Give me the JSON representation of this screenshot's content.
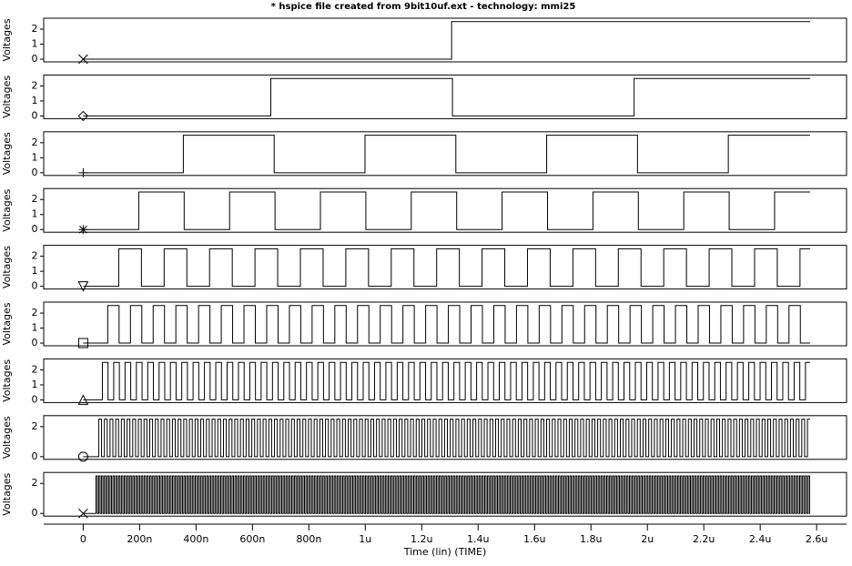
{
  "chart_data": [
    {
      "type": "line",
      "title": "* hspice file created from 9bit10uf.ext - technology: mmi25",
      "ylabel": "Voltages",
      "ylim": [
        -0.18,
        2.73
      ],
      "yticks": [
        0,
        1,
        2
      ],
      "waveform": {
        "start": 0,
        "delay": 1306,
        "half_period": 1300,
        "low": 0,
        "high": 2.5,
        "end": 2577
      }
    },
    {
      "type": "line",
      "ylabel": "Voltages",
      "ylim": [
        -0.18,
        2.73
      ],
      "yticks": [
        0,
        1,
        2
      ],
      "waveform": {
        "start": 0,
        "delay": 665,
        "half_period": 644,
        "low": 0,
        "high": 2.5,
        "end": 2577
      }
    },
    {
      "type": "line",
      "ylabel": "Voltages",
      "ylim": [
        -0.18,
        2.73
      ],
      "yticks": [
        0,
        1,
        2
      ],
      "waveform": {
        "start": 0,
        "delay": 355,
        "half_period": 322,
        "low": 0,
        "high": 2.5,
        "end": 2577
      }
    },
    {
      "type": "line",
      "ylabel": "Voltages",
      "ylim": [
        -0.18,
        2.73
      ],
      "yticks": [
        0,
        1,
        2
      ],
      "waveform": {
        "start": 0,
        "delay": 197,
        "half_period": 161,
        "low": 0,
        "high": 2.5,
        "end": 2577
      }
    },
    {
      "type": "line",
      "ylabel": "Voltages",
      "ylim": [
        -0.18,
        2.73
      ],
      "yticks": [
        0,
        1,
        2
      ],
      "waveform": {
        "start": 0,
        "delay": 126,
        "half_period": 80.5,
        "low": 0,
        "high": 2.5,
        "end": 2577
      }
    },
    {
      "type": "line",
      "ylabel": "Voltages",
      "ylim": [
        -0.18,
        2.73
      ],
      "yticks": [
        0,
        1,
        2
      ],
      "waveform": {
        "start": 0,
        "delay": 87,
        "half_period": 40.25,
        "low": 0,
        "high": 2.5,
        "end": 2577
      }
    },
    {
      "type": "line",
      "ylabel": "Voltages",
      "ylim": [
        -0.18,
        2.73
      ],
      "yticks": [
        0,
        1,
        2
      ],
      "waveform": {
        "start": 0,
        "delay": 68,
        "half_period": 20.1,
        "low": 0,
        "high": 2.5,
        "end": 2577
      }
    },
    {
      "type": "line",
      "ylabel": "Voltages",
      "ylim": [
        -0.18,
        2.73
      ],
      "yticks": [
        0,
        2
      ],
      "waveform": {
        "start": 0,
        "delay": 55,
        "half_period": 10.05,
        "low": 0,
        "high": 2.5,
        "end": 2577
      }
    },
    {
      "type": "line",
      "ylabel": "Voltages",
      "ylim": [
        -0.18,
        2.73
      ],
      "yticks": [
        0,
        2
      ],
      "waveform": {
        "start": 0,
        "delay": 45,
        "half_period": 5.03,
        "low": 0,
        "high": 2.5,
        "end": 2577
      },
      "xlabel": "Time (lin) (TIME)",
      "xlim": [
        -140,
        2706
      ],
      "xticks": [
        0,
        {
          "value": 200,
          "label": "200n"
        },
        {
          "value": 400,
          "label": "400n"
        },
        {
          "value": 600,
          "label": "600n"
        },
        {
          "value": 800,
          "label": "800n"
        },
        {
          "value": 1000,
          "label": "1u"
        },
        {
          "value": 1200,
          "label": "1.2u"
        },
        {
          "value": 1400,
          "label": "1.4u"
        },
        {
          "value": 1600,
          "label": "1.6u"
        },
        {
          "value": 1800,
          "label": "1.8u"
        },
        {
          "value": 2000,
          "label": "2u"
        },
        {
          "value": 2200,
          "label": "2.2u"
        },
        {
          "value": 2400,
          "label": "2.4u"
        },
        {
          "value": 2600,
          "label": "2.6u"
        }
      ]
    }
  ]
}
